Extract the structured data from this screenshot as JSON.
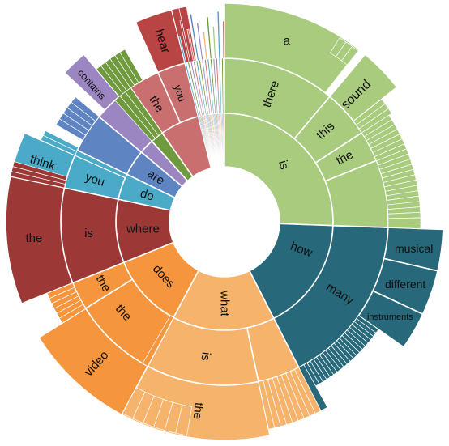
{
  "chart_data": {
    "type": "sunburst",
    "title": "",
    "levels": 4,
    "colors": {
      "is": "#a9cb7e",
      "how": "#27697a",
      "what": "#f6b36c",
      "does": "#f5953e",
      "where": "#9c3937",
      "do": "#4aaac7",
      "are": "#5e84c2",
      "purple_group": "#9b86c2",
      "green_group": "#6f9a3d",
      "you_group": "#c96f6f",
      "hear_group": "#b94444"
    },
    "nodes": [
      {
        "word": "is",
        "depth": 1,
        "start_deg": 0,
        "end_deg": 92,
        "color": "is"
      },
      {
        "word": "there",
        "depth": 2,
        "start_deg": 0,
        "end_deg": 40,
        "color": "is"
      },
      {
        "word": "a",
        "depth": 3,
        "start_deg": 0,
        "end_deg": 38,
        "color": "is"
      },
      {
        "word": "this",
        "depth": 2,
        "start_deg": 40,
        "end_deg": 57,
        "color": "is"
      },
      {
        "word": "sound",
        "depth": 3,
        "start_deg": 40,
        "end_deg": 52,
        "color": "is"
      },
      {
        "word": "the",
        "depth": 2,
        "start_deg": 57,
        "end_deg": 68,
        "color": "is"
      },
      {
        "word": "how",
        "depth": 1,
        "start_deg": 92,
        "end_deg": 153,
        "color": "how"
      },
      {
        "word": "many",
        "depth": 2,
        "start_deg": 92,
        "end_deg": 153,
        "color": "how"
      },
      {
        "word": "musical",
        "depth": 3,
        "start_deg": 92,
        "end_deg": 103,
        "color": "how"
      },
      {
        "word": "different",
        "depth": 3,
        "start_deg": 103,
        "end_deg": 115,
        "color": "how"
      },
      {
        "word": "instruments",
        "depth": 3,
        "start_deg": 115,
        "end_deg": 125,
        "color": "how"
      },
      {
        "word": "what",
        "depth": 1,
        "start_deg": 153,
        "end_deg": 208,
        "color": "what"
      },
      {
        "word": "is",
        "depth": 2,
        "start_deg": 168,
        "end_deg": 208,
        "color": "what"
      },
      {
        "word": "the",
        "depth": 3,
        "start_deg": 168,
        "end_deg": 208,
        "color": "what"
      },
      {
        "word": "does",
        "depth": 1,
        "start_deg": 208,
        "end_deg": 248,
        "color": "does"
      },
      {
        "word": "the",
        "depth": 2,
        "start_deg": 208,
        "end_deg": 238,
        "color": "does"
      },
      {
        "word": "the",
        "depth": 2,
        "start_deg": 238,
        "end_deg": 248,
        "color": "does"
      },
      {
        "word": "video",
        "depth": 3,
        "start_deg": 208,
        "end_deg": 238,
        "color": "does"
      },
      {
        "word": "where",
        "depth": 1,
        "start_deg": 248,
        "end_deg": 282,
        "color": "where"
      },
      {
        "word": "is",
        "depth": 2,
        "start_deg": 248,
        "end_deg": 282,
        "color": "where"
      },
      {
        "word": "the",
        "depth": 3,
        "start_deg": 248,
        "end_deg": 282,
        "color": "where"
      },
      {
        "word": "do",
        "depth": 1,
        "start_deg": 282,
        "end_deg": 296,
        "color": "do"
      },
      {
        "word": "you",
        "depth": 2,
        "start_deg": 282,
        "end_deg": 294,
        "color": "do"
      },
      {
        "word": "think",
        "depth": 3,
        "start_deg": 282,
        "end_deg": 294,
        "color": "do"
      },
      {
        "word": "are",
        "depth": 1,
        "start_deg": 296,
        "end_deg": 310,
        "color": "are"
      },
      {
        "word": "contains",
        "depth": 3,
        "start_deg": 313,
        "end_deg": 320,
        "color": "purple_group"
      },
      {
        "word": "the",
        "depth": 2,
        "start_deg": 325,
        "end_deg": 336,
        "color": "you_group"
      },
      {
        "word": "you",
        "depth": 2,
        "start_deg": 336,
        "end_deg": 346,
        "color": "you_group"
      },
      {
        "word": "hear",
        "depth": 3,
        "start_deg": 336,
        "end_deg": 346,
        "color": "hear_group"
      }
    ]
  }
}
